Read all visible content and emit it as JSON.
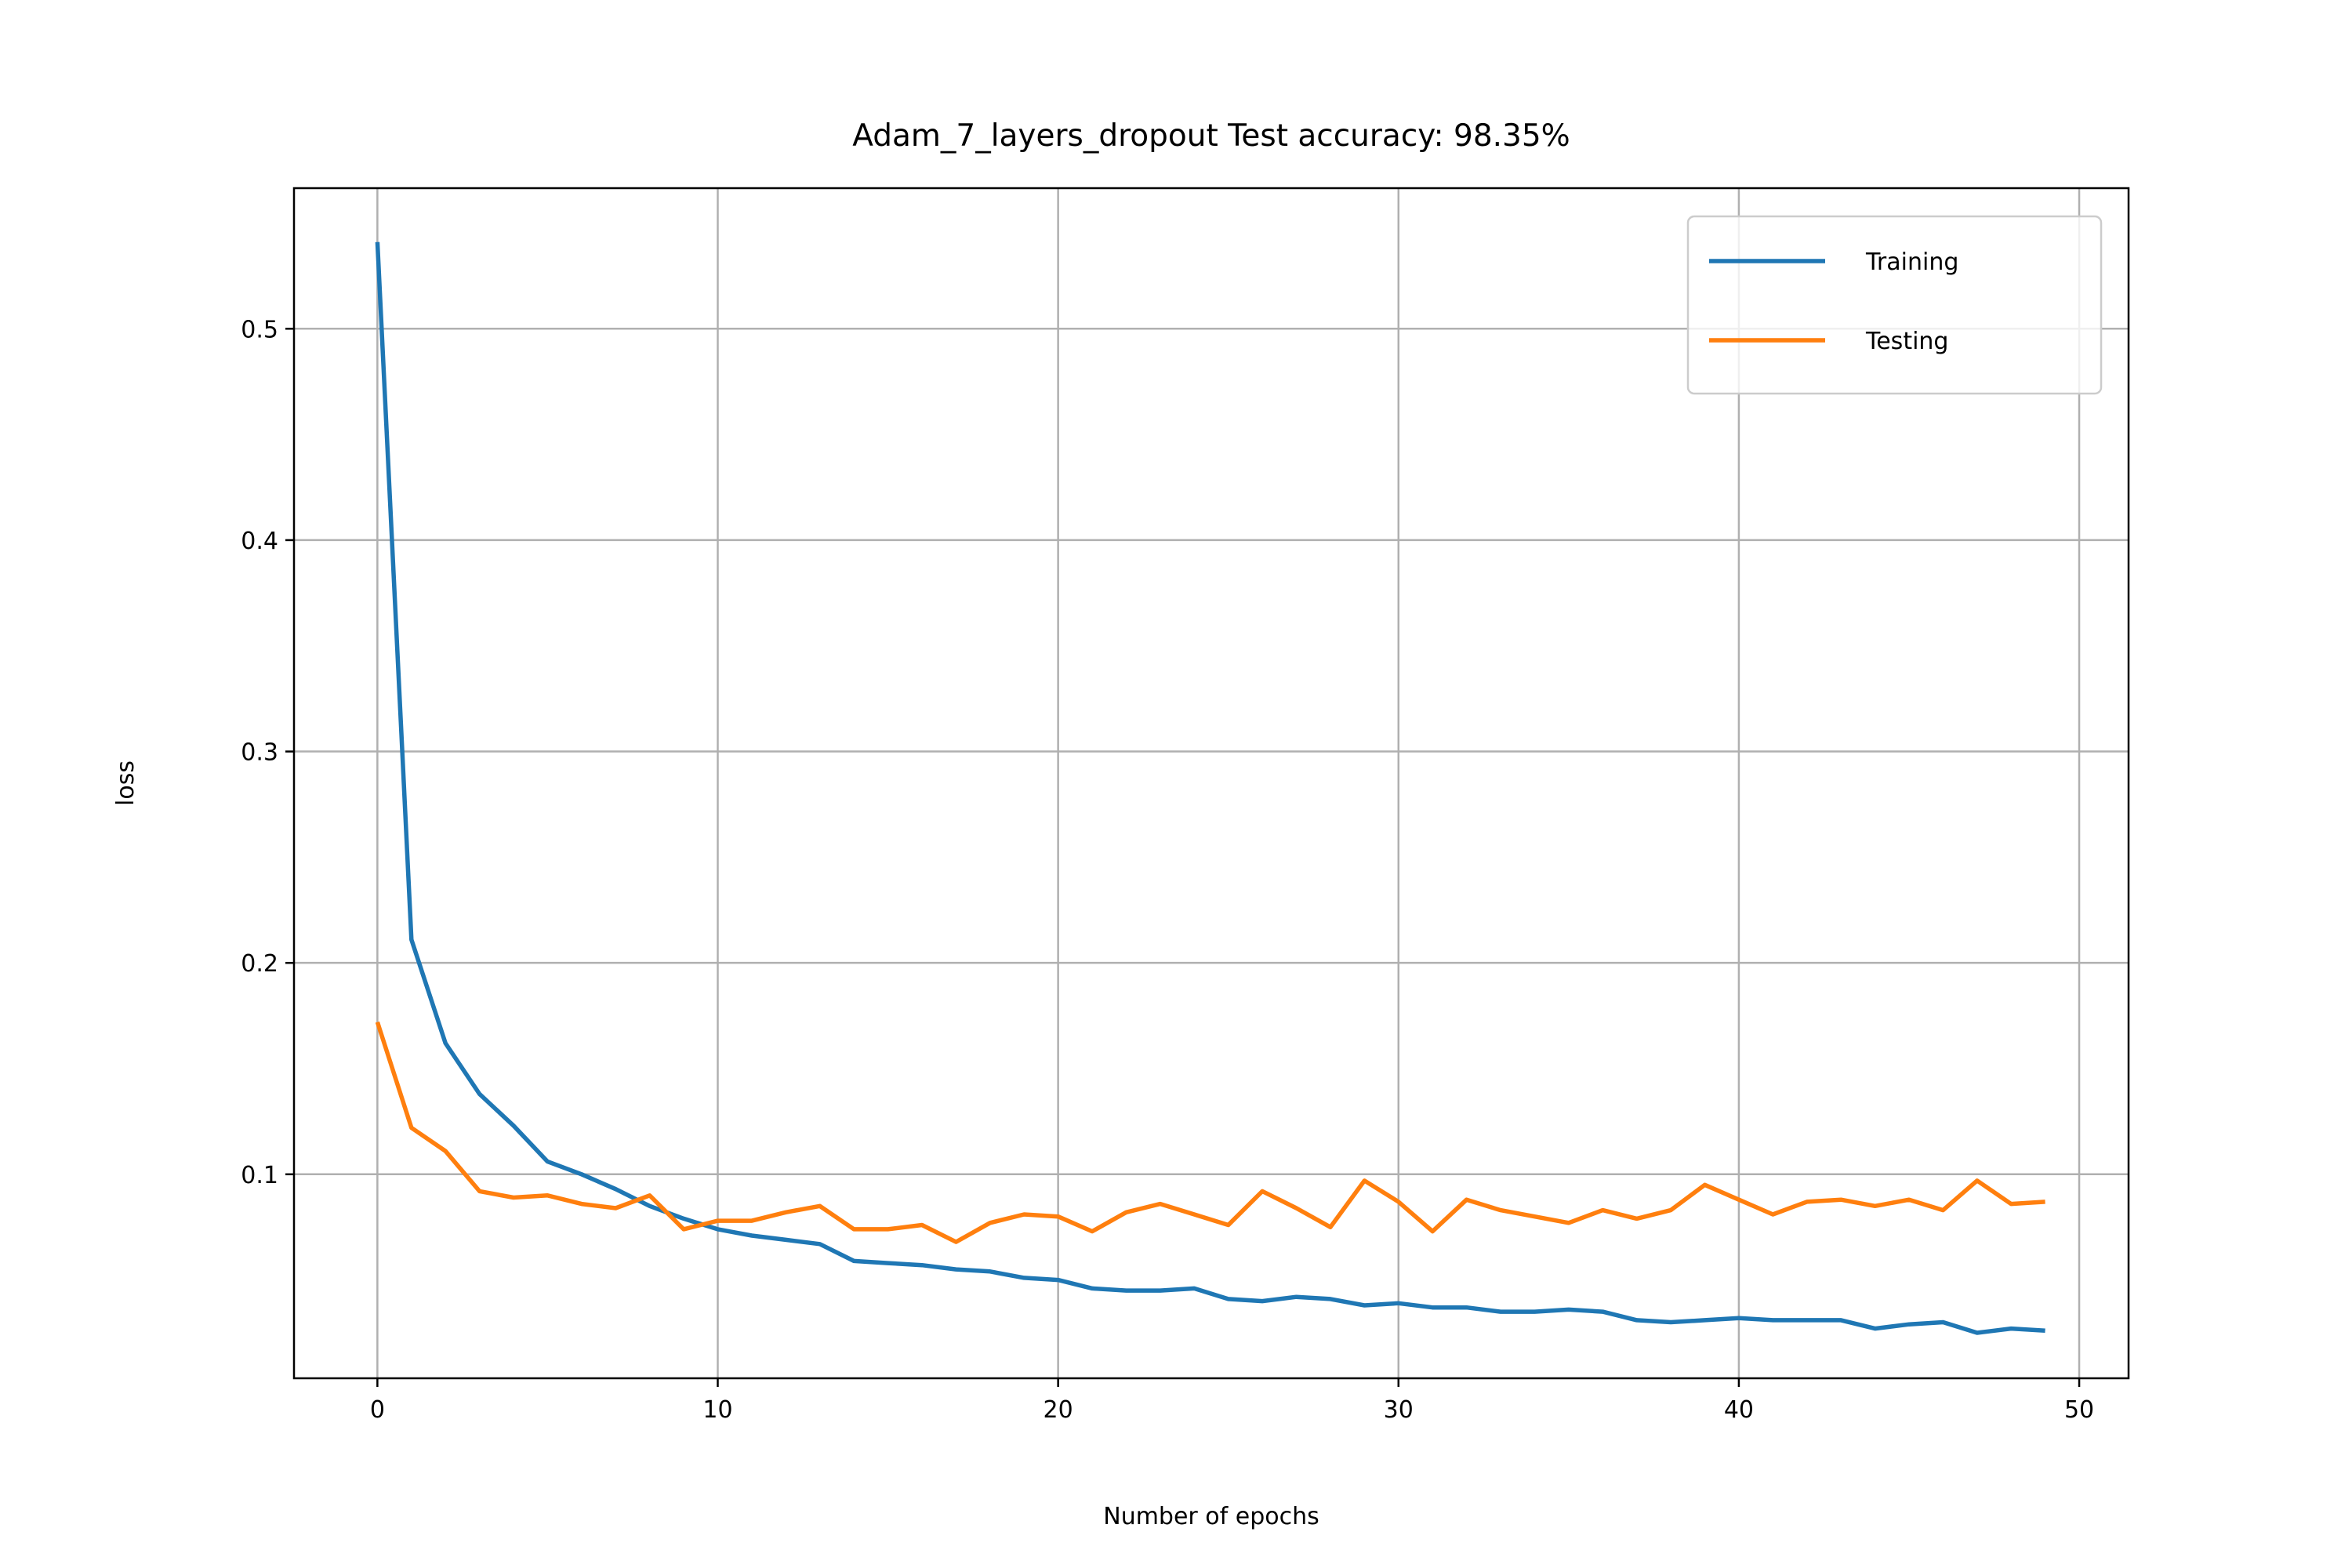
{
  "chart_data": {
    "type": "line",
    "title": "Adam_7_layers_dropout Test accuracy: 98.35%",
    "xlabel": "Number of epochs",
    "ylabel": "loss",
    "xlim": [
      -2.45,
      51.45
    ],
    "ylim": [
      0.0035,
      0.5665
    ],
    "xticks": [
      0,
      10,
      20,
      30,
      40,
      50
    ],
    "xtick_labels": [
      "0",
      "10",
      "20",
      "30",
      "40",
      "50"
    ],
    "yticks": [
      0.1,
      0.2,
      0.3,
      0.4,
      0.5
    ],
    "ytick_labels": [
      "0.1",
      "0.2",
      "0.3",
      "0.4",
      "0.5"
    ],
    "grid": true,
    "legend_position": "top-right",
    "x": [
      0,
      1,
      2,
      3,
      4,
      5,
      6,
      7,
      8,
      9,
      10,
      11,
      12,
      13,
      14,
      15,
      16,
      17,
      18,
      19,
      20,
      21,
      22,
      23,
      24,
      25,
      26,
      27,
      28,
      29,
      30,
      31,
      32,
      33,
      34,
      35,
      36,
      37,
      38,
      39,
      40,
      41,
      42,
      43,
      44,
      45,
      46,
      47,
      48,
      49
    ],
    "series": [
      {
        "name": "Training",
        "color": "#1f77b4",
        "values": [
          0.541,
          0.211,
          0.162,
          0.138,
          0.123,
          0.106,
          0.1,
          0.093,
          0.085,
          0.079,
          0.074,
          0.071,
          0.069,
          0.067,
          0.059,
          0.058,
          0.057,
          0.055,
          0.054,
          0.051,
          0.05,
          0.046,
          0.045,
          0.045,
          0.046,
          0.041,
          0.04,
          0.042,
          0.041,
          0.038,
          0.039,
          0.037,
          0.037,
          0.035,
          0.035,
          0.036,
          0.035,
          0.031,
          0.03,
          0.031,
          0.032,
          0.031,
          0.031,
          0.031,
          0.027,
          0.029,
          0.03,
          0.025,
          0.027,
          0.026
        ]
      },
      {
        "name": "Testing",
        "color": "#ff7f0e",
        "values": [
          0.172,
          0.122,
          0.111,
          0.092,
          0.089,
          0.09,
          0.086,
          0.084,
          0.09,
          0.074,
          0.078,
          0.078,
          0.082,
          0.085,
          0.074,
          0.074,
          0.076,
          0.068,
          0.077,
          0.081,
          0.08,
          0.073,
          0.082,
          0.086,
          0.081,
          0.076,
          0.092,
          0.084,
          0.075,
          0.097,
          0.087,
          0.073,
          0.088,
          0.083,
          0.08,
          0.077,
          0.083,
          0.079,
          0.083,
          0.095,
          0.088,
          0.081,
          0.087,
          0.088,
          0.085,
          0.088,
          0.083,
          0.097,
          0.086,
          0.087
        ]
      }
    ]
  }
}
